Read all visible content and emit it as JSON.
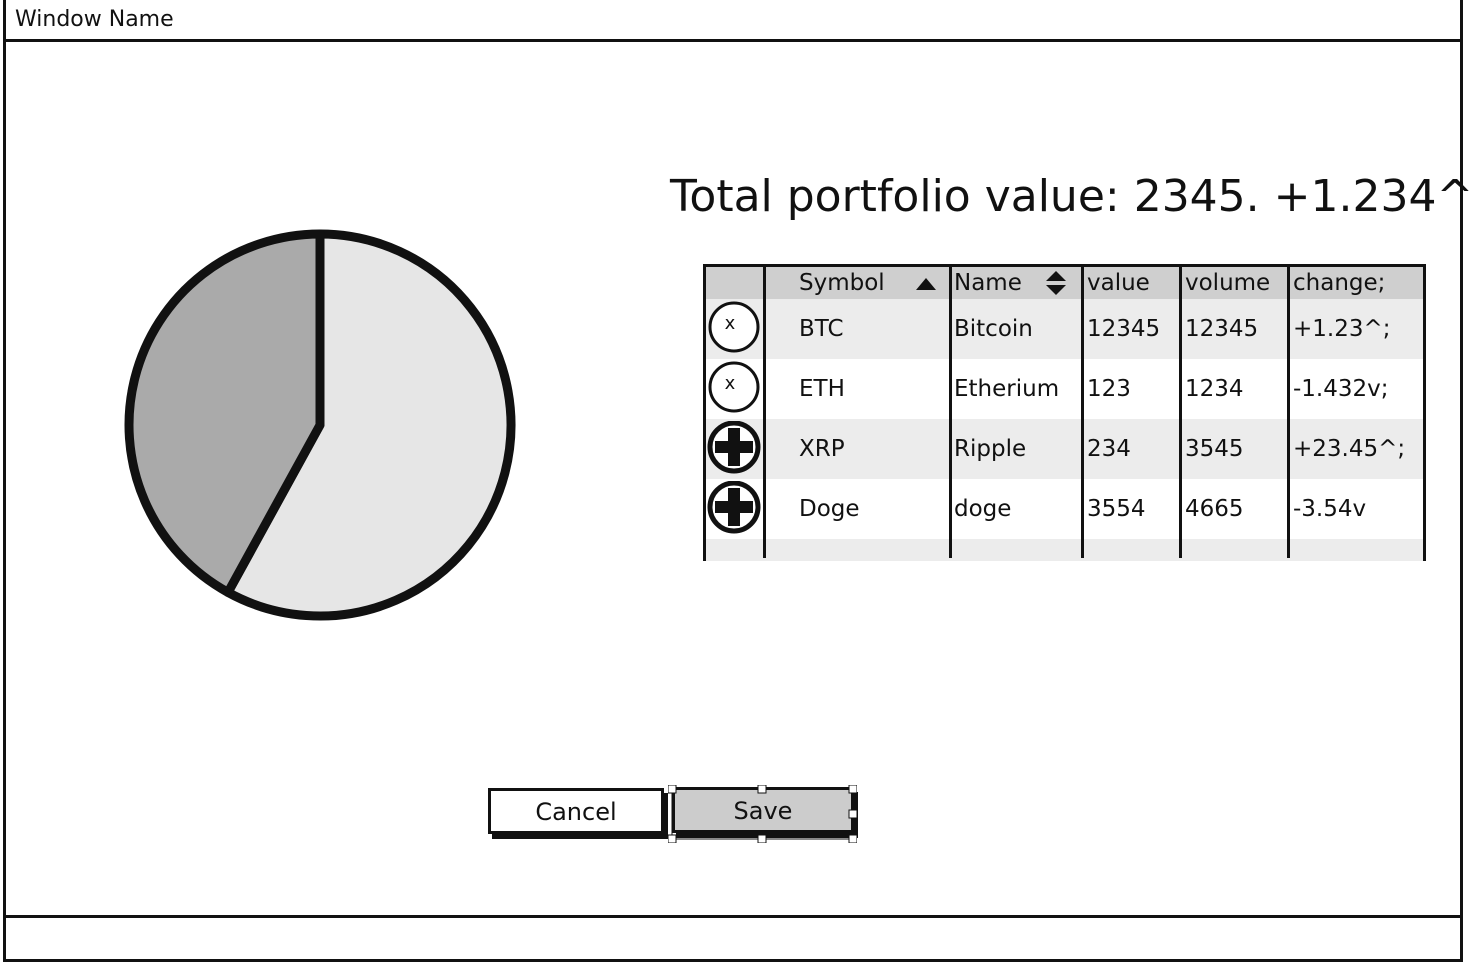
{
  "window": {
    "title": "Window Name"
  },
  "portfolio": {
    "total_label": "Total portfolio value: 2345. +1.234^"
  },
  "chart_data": {
    "type": "pie",
    "slices": [
      {
        "value": 58,
        "color": "#e6e6e6"
      },
      {
        "value": 42,
        "color": "#aaaaaa"
      }
    ]
  },
  "grid": {
    "columns": [
      {
        "key": "symbol",
        "label": "Symbol",
        "sort": "ascending"
      },
      {
        "key": "name",
        "label": "Name",
        "sort": "both"
      },
      {
        "key": "value",
        "label": "value"
      },
      {
        "key": "volume",
        "label": "volume"
      },
      {
        "key": "change",
        "label": "change;"
      }
    ],
    "rows": [
      {
        "action": "remove",
        "action_icon": "x-circle-icon",
        "action_glyph": "x",
        "symbol": "BTC",
        "name": "Bitcoin",
        "value": "12345",
        "volume": "12345",
        "change": "+1.23^;"
      },
      {
        "action": "remove",
        "action_icon": "x-circle-icon",
        "action_glyph": "x",
        "symbol": "ETH",
        "name": "Etherium",
        "value": "123",
        "volume": "1234",
        "change": "-1.432v;"
      },
      {
        "action": "add",
        "action_icon": "plus-circle-icon",
        "symbol": "XRP",
        "name": "Ripple",
        "value": "234",
        "volume": "3545",
        "change": "+23.45^;"
      },
      {
        "action": "add",
        "action_icon": "plus-circle-icon",
        "symbol": "Doge",
        "name": "doge",
        "value": "3554",
        "volume": "4665",
        "change": "-3.54v"
      }
    ]
  },
  "buttons": {
    "cancel_label": "Cancel",
    "save_label": "Save"
  },
  "colors": {
    "stroke": "#111111",
    "header_fill": "#cfcfcf",
    "band_fill": "#ececec",
    "save_fill": "#cccccc"
  }
}
